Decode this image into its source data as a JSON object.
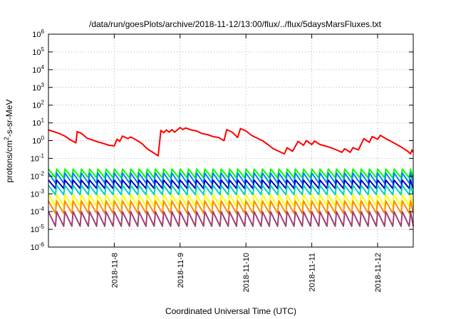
{
  "chart_data": {
    "type": "line",
    "title": "/data/run/goesPlots/archive/2018-11-12/13:00/flux/../flux/5daysMarsFluxes.txt",
    "xlabel": "Coordinated Universal Time (UTC)",
    "ylabel": "protons/cm2-s-sr-MeV",
    "ylabel_parts": {
      "pre": "protons/cm",
      "sup": "2",
      "post": "-s-sr-MeV"
    },
    "y_scale": "log",
    "ylim": [
      1e-06,
      1000000.0
    ],
    "y_ticks": [
      {
        "base": "10",
        "exp": "-6"
      },
      {
        "base": "10",
        "exp": "-5"
      },
      {
        "base": "10",
        "exp": "-4"
      },
      {
        "base": "10",
        "exp": "-3"
      },
      {
        "base": "10",
        "exp": "-2"
      },
      {
        "base": "10",
        "exp": "-1"
      },
      {
        "base": "10",
        "exp": "0"
      },
      {
        "base": "10",
        "exp": "1"
      },
      {
        "base": "10",
        "exp": "2"
      },
      {
        "base": "10",
        "exp": "3"
      },
      {
        "base": "10",
        "exp": "4"
      },
      {
        "base": "10",
        "exp": "5"
      },
      {
        "base": "10",
        "exp": "6"
      }
    ],
    "xlim": [
      "2018-11-07 00:00",
      "2018-11-12 13:00"
    ],
    "x_ticks": [
      "2018-11-8",
      "2018-11-9",
      "2018-11-10",
      "2018-11-11",
      "2018-11-12"
    ],
    "grid": true,
    "series": [
      {
        "color": "#ff0000",
        "style": "line",
        "points": [
          [
            "2018-11-07 00:00",
            4.0
          ],
          [
            "2018-11-07 02:00",
            3.2
          ],
          [
            "2018-11-07 04:00",
            2.5
          ],
          [
            "2018-11-07 06:00",
            1.8
          ],
          [
            "2018-11-07 08:00",
            1.1
          ],
          [
            "2018-11-07 10:00",
            0.75
          ],
          [
            "2018-11-07 10:30",
            3.2
          ],
          [
            "2018-11-07 12:00",
            2.6
          ],
          [
            "2018-11-07 14:00",
            1.4
          ],
          [
            "2018-11-07 16:00",
            1.1
          ],
          [
            "2018-11-07 18:00",
            0.85
          ],
          [
            "2018-11-07 20:00",
            0.7
          ],
          [
            "2018-11-07 22:00",
            0.55
          ],
          [
            "2018-11-08 00:00",
            0.5
          ],
          [
            "2018-11-08 01:00",
            1.2
          ],
          [
            "2018-11-08 02:00",
            0.9
          ],
          [
            "2018-11-08 03:00",
            1.8
          ],
          [
            "2018-11-08 05:00",
            1.3
          ],
          [
            "2018-11-08 06:00",
            1.6
          ],
          [
            "2018-11-08 08:00",
            1.1
          ],
          [
            "2018-11-08 10:00",
            0.7
          ],
          [
            "2018-11-08 12:00",
            0.35
          ],
          [
            "2018-11-08 14:00",
            0.22
          ],
          [
            "2018-11-08 16:00",
            0.14
          ],
          [
            "2018-11-08 17:00",
            3.8
          ],
          [
            "2018-11-08 18:00",
            2.8
          ],
          [
            "2018-11-08 19:00",
            4.0
          ],
          [
            "2018-11-08 20:00",
            3.0
          ],
          [
            "2018-11-08 21:00",
            4.2
          ],
          [
            "2018-11-08 22:00",
            3.0
          ],
          [
            "2018-11-09 00:00",
            5.5
          ],
          [
            "2018-11-09 01:00",
            4.2
          ],
          [
            "2018-11-09 02:00",
            5.2
          ],
          [
            "2018-11-09 04:00",
            4.0
          ],
          [
            "2018-11-09 06:00",
            3.5
          ],
          [
            "2018-11-09 08:00",
            2.5
          ],
          [
            "2018-11-09 10:00",
            2.2
          ],
          [
            "2018-11-09 12:00",
            1.7
          ],
          [
            "2018-11-09 14:00",
            1.5
          ],
          [
            "2018-11-09 16:00",
            1.0
          ],
          [
            "2018-11-09 17:00",
            4.2
          ],
          [
            "2018-11-09 19:00",
            3.0
          ],
          [
            "2018-11-09 21:00",
            1.5
          ],
          [
            "2018-11-09 22:00",
            4.8
          ],
          [
            "2018-11-10 00:00",
            3.5
          ],
          [
            "2018-11-10 02:00",
            2.0
          ],
          [
            "2018-11-10 04:00",
            1.4
          ],
          [
            "2018-11-10 06:00",
            1.0
          ],
          [
            "2018-11-10 08:00",
            0.6
          ],
          [
            "2018-11-10 10:00",
            0.35
          ],
          [
            "2018-11-10 12:00",
            0.25
          ],
          [
            "2018-11-10 14:00",
            0.18
          ],
          [
            "2018-11-10 15:00",
            0.4
          ],
          [
            "2018-11-10 17:00",
            0.25
          ],
          [
            "2018-11-10 19:00",
            0.9
          ],
          [
            "2018-11-10 21:00",
            0.55
          ],
          [
            "2018-11-10 22:00",
            1.0
          ],
          [
            "2018-11-11 00:00",
            0.6
          ],
          [
            "2018-11-11 01:00",
            0.95
          ],
          [
            "2018-11-11 03:00",
            0.6
          ],
          [
            "2018-11-11 05:00",
            0.5
          ],
          [
            "2018-11-11 07:00",
            0.4
          ],
          [
            "2018-11-11 09:00",
            0.3
          ],
          [
            "2018-11-11 11:00",
            0.22
          ],
          [
            "2018-11-11 12:00",
            0.35
          ],
          [
            "2018-11-11 14:00",
            0.22
          ],
          [
            "2018-11-11 15:00",
            0.4
          ],
          [
            "2018-11-11 17:00",
            0.3
          ],
          [
            "2018-11-11 19:00",
            1.3
          ],
          [
            "2018-11-11 21:00",
            0.8
          ],
          [
            "2018-11-11 22:00",
            1.7
          ],
          [
            "2018-11-12 00:00",
            1.2
          ],
          [
            "2018-11-12 01:00",
            2.0
          ],
          [
            "2018-11-12 03:00",
            1.3
          ],
          [
            "2018-11-12 05:00",
            0.9
          ],
          [
            "2018-11-12 07:00",
            0.6
          ],
          [
            "2018-11-12 09:00",
            0.4
          ],
          [
            "2018-11-12 11:00",
            0.25
          ],
          [
            "2018-11-12 12:00",
            0.18
          ],
          [
            "2018-11-12 12:30",
            0.3
          ],
          [
            "2018-11-12 13:00",
            0.22
          ]
        ]
      },
      {
        "color": "#00ff00",
        "style": "sawtooth",
        "low": 0.008,
        "high": 0.025,
        "start": "2018-11-07 00:00",
        "end": "2018-11-12 13:00",
        "period_hours": 3
      },
      {
        "color": "#0080ff",
        "style": "sawtooth",
        "low": 0.004,
        "high": 0.015,
        "start": "2018-11-07 00:00",
        "end": "2018-11-12 13:00",
        "period_hours": 3
      },
      {
        "color": "#0000c0",
        "style": "sawtooth",
        "low": 0.002,
        "high": 0.006,
        "start": "2018-11-07 00:00",
        "end": "2018-11-12 13:00",
        "period_hours": 3
      },
      {
        "color": "#00d0c0",
        "style": "sawtooth",
        "low": 0.0009,
        "high": 0.003,
        "start": "2018-11-07 00:00",
        "end": "2018-11-12 13:00",
        "period_hours": 3
      },
      {
        "color": "#ffff00",
        "style": "sawtooth",
        "low": 0.0002,
        "high": 0.0009,
        "start": "2018-11-07 00:00",
        "end": "2018-11-12 13:00",
        "period_hours": 3
      },
      {
        "color": "#ff8800",
        "style": "sawtooth",
        "low": 8e-05,
        "high": 0.0004,
        "start": "2018-11-07 00:00",
        "end": "2018-11-12 13:00",
        "period_hours": 3
      },
      {
        "color": "#a04070",
        "style": "sawtooth",
        "low": 1.5e-05,
        "high": 0.0001,
        "start": "2018-11-07 00:00",
        "end": "2018-11-12 13:00",
        "period_hours": 3
      }
    ]
  }
}
